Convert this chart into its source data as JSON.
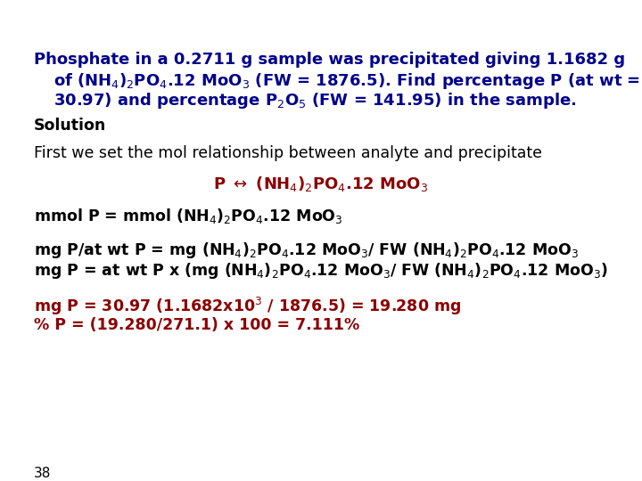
{
  "background_color": "#ffffff",
  "blue": "#00008B",
  "dark_red": "#8B0000",
  "black": "#000000",
  "page_number": "38",
  "figsize": [
    7.2,
    5.4
  ],
  "dpi": 100
}
